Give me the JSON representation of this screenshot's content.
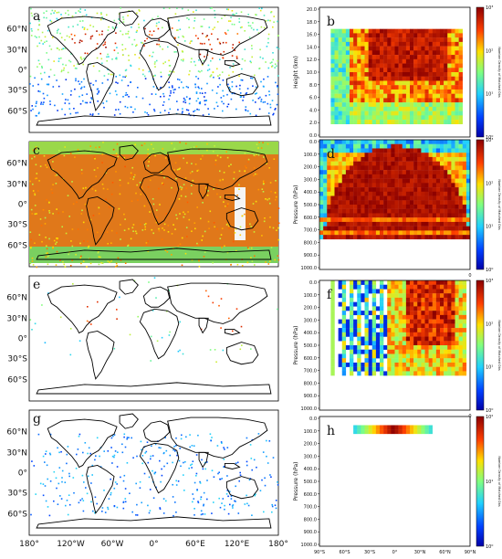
{
  "colors": {
    "low": "#0000b8",
    "mid": "#36e0c0",
    "high": "#fff000",
    "top": "#8b0000",
    "coast": "#000000"
  },
  "map_lat_ticks": [
    "60°N",
    "30°N",
    "0°",
    "30°S",
    "60°S"
  ],
  "map_lon_ticks": [
    "180°",
    "120°W",
    "60°W",
    "0°",
    "60°E",
    "120°E",
    "180°"
  ],
  "section_lat_ticks": [
    "90°S",
    "60°S",
    "30°S",
    "0°",
    "30°N",
    "60°N",
    "90°N"
  ],
  "colorbar_label": "Number Density of Matched Obs",
  "chart_data": [
    {
      "panel": "a",
      "type": "heatmap",
      "title": "a",
      "description_kind": "map",
      "note": "global distribution of matched observations"
    },
    {
      "panel": "b",
      "type": "heatmap",
      "title": "b",
      "xlabel": "",
      "ylabel": "Height (km)",
      "y_ticks": [
        "20.0",
        "18.0",
        "16.0",
        "14.0",
        "12.0",
        "10.0",
        "8.0",
        "6.0",
        "4.0",
        "2.0",
        "0.0"
      ],
      "ylim": [
        0,
        20
      ],
      "colorbar_ticks": [
        "10³",
        "10²",
        "10¹",
        "10⁰"
      ],
      "colorbar_label": "Number Density of Matched Obs"
    },
    {
      "panel": "c",
      "type": "heatmap",
      "title": "c",
      "description_kind": "map"
    },
    {
      "panel": "d",
      "type": "heatmap",
      "title": "d",
      "ylabel": "Pressure (hPa)",
      "y_ticks": [
        "0.0",
        "100.0",
        "200.0",
        "300.0",
        "400.0",
        "500.0",
        "600.0",
        "700.0",
        "800.0",
        "900.0",
        "1000.0"
      ],
      "ylim": [
        1000,
        0
      ],
      "colorbar_ticks": [
        "10³",
        "10²",
        "10¹",
        "10⁰"
      ],
      "colorbar_label": "Number Density of Matched Obs",
      "x_ticks_partial": [
        "0"
      ]
    },
    {
      "panel": "e",
      "type": "heatmap",
      "title": "e",
      "description_kind": "map"
    },
    {
      "panel": "f",
      "type": "heatmap",
      "title": "f",
      "ylabel": "Pressure (hPa)",
      "y_ticks": [
        "0.0",
        "100.0",
        "200.0",
        "300.0",
        "400.0",
        "500.0",
        "600.0",
        "700.0",
        "800.0",
        "900.0",
        "1000.0"
      ],
      "ylim": [
        1000,
        0
      ],
      "colorbar_ticks": [
        "10³",
        "10²",
        "10¹",
        "10⁰"
      ],
      "colorbar_label": "Number Density of Matched Obs",
      "x_ticks_partial": [
        "0"
      ]
    },
    {
      "panel": "g",
      "type": "heatmap",
      "title": "g",
      "description_kind": "map"
    },
    {
      "panel": "h",
      "type": "heatmap",
      "title": "h",
      "ylabel": "Pressure (hPa)",
      "y_ticks": [
        "0.0",
        "100.0",
        "200.0",
        "300.0",
        "400.0",
        "500.0",
        "600.0",
        "700.0",
        "800.0",
        "900.0",
        "1000.0"
      ],
      "ylim": [
        1000,
        0
      ],
      "x_ticks": [
        "90°S",
        "60°S",
        "30°S",
        "0°",
        "30°N",
        "60°N",
        "90°N"
      ],
      "colorbar_ticks": [
        "10²",
        "10¹",
        "10⁰"
      ],
      "colorbar_label": "Number Density of Matched Obs"
    }
  ]
}
